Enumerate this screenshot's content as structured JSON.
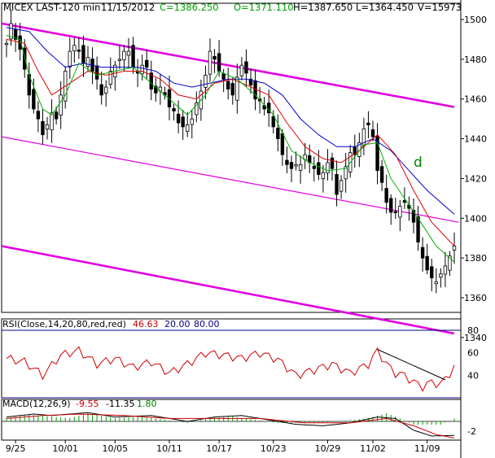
{
  "header": {
    "symbol": "MICEX LAST-120 min",
    "date": "11/15/2012",
    "close": "C=1386.250",
    "open": "O=1371.110",
    "high": "H=1387.650",
    "low": "L=1364.450",
    "volume": "V=15973"
  },
  "rsi_header": {
    "label": "RSI(Close,14,20,80,red,red)",
    "value": "46.63",
    "lower": "20.00",
    "upper": "80.00"
  },
  "macd_header": {
    "label": "MACD(12,26,9)",
    "macd": "-9.55",
    "signal": "-11.35",
    "hist": "1.80"
  },
  "colors": {
    "candles": "#000000",
    "ma_fast": "#00b000",
    "ma_mid": "#e00000",
    "ma_slow": "#0000cc",
    "channel": "#e000e0",
    "rsi": "#cc0000",
    "rsi_levels": "#000080",
    "macd_hist": "#00a000",
    "trendline": "#000000"
  },
  "annotation": "d",
  "chart_data": [
    {
      "type": "candlestick",
      "x_ticks": [
        "9/25",
        "10/01",
        "10/05",
        "10/11",
        "10/17",
        "10/23",
        "10/29",
        "11/02",
        "11/09"
      ],
      "ylim": [
        1330,
        1505
      ],
      "y_ticks": [
        1340,
        1360,
        1380,
        1400,
        1420,
        1440,
        1460,
        1480,
        1500
      ],
      "close_path": [
        [
          0,
          1488
        ],
        [
          1,
          1498
        ],
        [
          2,
          1490
        ],
        [
          3,
          1485
        ],
        [
          4,
          1475
        ],
        [
          5,
          1462
        ],
        [
          6,
          1455
        ],
        [
          7,
          1450
        ],
        [
          8,
          1442
        ],
        [
          9,
          1447
        ],
        [
          10,
          1453
        ],
        [
          11,
          1450
        ],
        [
          12,
          1462
        ],
        [
          13,
          1474
        ],
        [
          14,
          1484
        ],
        [
          15,
          1487
        ],
        [
          16,
          1484
        ],
        [
          17,
          1478
        ],
        [
          18,
          1481
        ],
        [
          19,
          1474
        ],
        [
          20,
          1470
        ],
        [
          21,
          1462
        ],
        [
          22,
          1466
        ],
        [
          23,
          1474
        ],
        [
          24,
          1477
        ],
        [
          25,
          1480
        ],
        [
          26,
          1484
        ],
        [
          27,
          1484
        ],
        [
          28,
          1476
        ],
        [
          29,
          1473
        ],
        [
          30,
          1477
        ],
        [
          31,
          1476
        ],
        [
          32,
          1465
        ],
        [
          33,
          1463
        ],
        [
          34,
          1466
        ],
        [
          35,
          1462
        ],
        [
          36,
          1456
        ],
        [
          37,
          1454
        ],
        [
          38,
          1448
        ],
        [
          39,
          1446
        ],
        [
          40,
          1447
        ],
        [
          41,
          1450
        ],
        [
          42,
          1458
        ],
        [
          43,
          1464
        ],
        [
          44,
          1472
        ],
        [
          45,
          1484
        ],
        [
          46,
          1480
        ],
        [
          47,
          1474
        ],
        [
          48,
          1470
        ],
        [
          49,
          1465
        ],
        [
          50,
          1462
        ],
        [
          51,
          1471
        ],
        [
          52,
          1477
        ],
        [
          53,
          1473
        ],
        [
          54,
          1467
        ],
        [
          55,
          1460
        ],
        [
          56,
          1459
        ],
        [
          57,
          1455
        ],
        [
          58,
          1453
        ],
        [
          59,
          1446
        ],
        [
          60,
          1440
        ],
        [
          61,
          1432
        ],
        [
          62,
          1427
        ],
        [
          63,
          1425
        ],
        [
          64,
          1427
        ],
        [
          65,
          1427
        ],
        [
          66,
          1432
        ],
        [
          67,
          1428
        ],
        [
          68,
          1425
        ],
        [
          69,
          1422
        ],
        [
          70,
          1423
        ],
        [
          71,
          1428
        ],
        [
          72,
          1425
        ],
        [
          73,
          1412
        ],
        [
          74,
          1419
        ],
        [
          75,
          1426
        ],
        [
          76,
          1433
        ],
        [
          77,
          1432
        ],
        [
          78,
          1438
        ],
        [
          79,
          1445
        ],
        [
          80,
          1447
        ],
        [
          81,
          1441
        ],
        [
          82,
          1424
        ],
        [
          83,
          1418
        ],
        [
          84,
          1408
        ],
        [
          85,
          1403
        ],
        [
          86,
          1403
        ],
        [
          87,
          1406
        ],
        [
          88,
          1408
        ],
        [
          89,
          1405
        ],
        [
          90,
          1398
        ],
        [
          91,
          1388
        ],
        [
          92,
          1380
        ],
        [
          93,
          1374
        ],
        [
          94,
          1370
        ],
        [
          95,
          1368
        ],
        [
          96,
          1372
        ],
        [
          97,
          1376
        ],
        [
          98,
          1381
        ],
        [
          99,
          1386
        ]
      ],
      "ma_fast": [
        [
          0,
          1492
        ],
        [
          3,
          1490
        ],
        [
          5,
          1472
        ],
        [
          8,
          1455
        ],
        [
          10,
          1452
        ],
        [
          13,
          1462
        ],
        [
          16,
          1478
        ],
        [
          20,
          1472
        ],
        [
          24,
          1474
        ],
        [
          28,
          1476
        ],
        [
          32,
          1468
        ],
        [
          36,
          1460
        ],
        [
          40,
          1452
        ],
        [
          44,
          1462
        ],
        [
          47,
          1474
        ],
        [
          51,
          1470
        ],
        [
          55,
          1462
        ],
        [
          59,
          1452
        ],
        [
          63,
          1434
        ],
        [
          67,
          1428
        ],
        [
          71,
          1424
        ],
        [
          75,
          1425
        ],
        [
          79,
          1437
        ],
        [
          82,
          1438
        ],
        [
          85,
          1420
        ],
        [
          88,
          1410
        ],
        [
          91,
          1400
        ],
        [
          95,
          1386
        ],
        [
          99,
          1378
        ]
      ],
      "ma_mid": [
        [
          0,
          1490
        ],
        [
          4,
          1488
        ],
        [
          7,
          1474
        ],
        [
          10,
          1462
        ],
        [
          14,
          1468
        ],
        [
          18,
          1474
        ],
        [
          22,
          1472
        ],
        [
          26,
          1474
        ],
        [
          30,
          1474
        ],
        [
          34,
          1470
        ],
        [
          38,
          1462
        ],
        [
          42,
          1460
        ],
        [
          46,
          1468
        ],
        [
          50,
          1470
        ],
        [
          54,
          1466
        ],
        [
          58,
          1462
        ],
        [
          62,
          1448
        ],
        [
          66,
          1436
        ],
        [
          70,
          1430
        ],
        [
          74,
          1428
        ],
        [
          78,
          1434
        ],
        [
          82,
          1442
        ],
        [
          86,
          1432
        ],
        [
          90,
          1414
        ],
        [
          94,
          1398
        ],
        [
          99,
          1386
        ]
      ],
      "ma_slow": [
        [
          0,
          1496
        ],
        [
          5,
          1494
        ],
        [
          9,
          1484
        ],
        [
          13,
          1476
        ],
        [
          17,
          1478
        ],
        [
          21,
          1476
        ],
        [
          25,
          1476
        ],
        [
          29,
          1476
        ],
        [
          33,
          1474
        ],
        [
          37,
          1468
        ],
        [
          41,
          1466
        ],
        [
          45,
          1468
        ],
        [
          49,
          1470
        ],
        [
          53,
          1470
        ],
        [
          57,
          1468
        ],
        [
          61,
          1462
        ],
        [
          65,
          1450
        ],
        [
          69,
          1442
        ],
        [
          73,
          1436
        ],
        [
          77,
          1436
        ],
        [
          81,
          1440
        ],
        [
          85,
          1434
        ],
        [
          89,
          1424
        ],
        [
          93,
          1414
        ],
        [
          99,
          1402
        ]
      ],
      "channel_lines": [
        {
          "from": [
            0,
            1498
          ],
          "to": [
            99,
            1456
          ]
        },
        {
          "from": [
            0,
            1441
          ],
          "to": [
            100,
            1398
          ]
        },
        {
          "from": [
            0,
            1386
          ],
          "to": [
            99,
            1342
          ]
        }
      ]
    },
    {
      "type": "line",
      "name": "RSI",
      "ylim": [
        0,
        100
      ],
      "y_ticks": [
        40,
        60,
        80
      ],
      "levels": [
        20,
        80
      ],
      "values": [
        [
          0,
          55
        ],
        [
          4,
          52
        ],
        [
          8,
          40
        ],
        [
          12,
          58
        ],
        [
          16,
          62
        ],
        [
          20,
          50
        ],
        [
          24,
          55
        ],
        [
          28,
          47
        ],
        [
          32,
          52
        ],
        [
          36,
          42
        ],
        [
          40,
          50
        ],
        [
          44,
          60
        ],
        [
          48,
          58
        ],
        [
          52,
          55
        ],
        [
          56,
          60
        ],
        [
          60,
          54
        ],
        [
          64,
          40
        ],
        [
          68,
          45
        ],
        [
          72,
          50
        ],
        [
          76,
          42
        ],
        [
          80,
          50
        ],
        [
          82,
          62
        ],
        [
          84,
          50
        ],
        [
          86,
          42
        ],
        [
          88,
          40
        ],
        [
          90,
          34
        ],
        [
          92,
          30
        ],
        [
          94,
          34
        ],
        [
          96,
          32
        ],
        [
          99,
          47
        ]
      ],
      "trendline": {
        "from": [
          82,
          63
        ],
        "to": [
          97,
          36
        ]
      }
    },
    {
      "type": "bar",
      "name": "MACD",
      "y_ticks": [
        -2
      ],
      "hist": [
        [
          0,
          2
        ],
        [
          5,
          4
        ],
        [
          10,
          3
        ],
        [
          14,
          2
        ],
        [
          18,
          5
        ],
        [
          24,
          2
        ],
        [
          30,
          3
        ],
        [
          40,
          -1
        ],
        [
          45,
          2
        ],
        [
          50,
          3
        ],
        [
          60,
          -1
        ],
        [
          70,
          -1
        ],
        [
          80,
          2
        ],
        [
          84,
          5
        ],
        [
          86,
          3
        ],
        [
          90,
          -2
        ],
        [
          96,
          -2
        ],
        [
          99,
          1.8
        ]
      ],
      "macd": [
        [
          0,
          3
        ],
        [
          6,
          5
        ],
        [
          10,
          4
        ],
        [
          18,
          6
        ],
        [
          24,
          3
        ],
        [
          32,
          4
        ],
        [
          40,
          0
        ],
        [
          46,
          3
        ],
        [
          52,
          4
        ],
        [
          58,
          1
        ],
        [
          64,
          -2
        ],
        [
          70,
          -3
        ],
        [
          76,
          -1
        ],
        [
          82,
          3
        ],
        [
          86,
          2
        ],
        [
          90,
          -6
        ],
        [
          94,
          -10
        ],
        [
          99,
          -9.55
        ]
      ],
      "signal": [
        [
          0,
          2
        ],
        [
          8,
          4
        ],
        [
          16,
          5
        ],
        [
          26,
          4
        ],
        [
          36,
          2
        ],
        [
          46,
          2
        ],
        [
          56,
          2
        ],
        [
          66,
          -1
        ],
        [
          76,
          -1
        ],
        [
          84,
          2
        ],
        [
          90,
          -3
        ],
        [
          95,
          -9
        ],
        [
          99,
          -11.35
        ]
      ]
    }
  ]
}
